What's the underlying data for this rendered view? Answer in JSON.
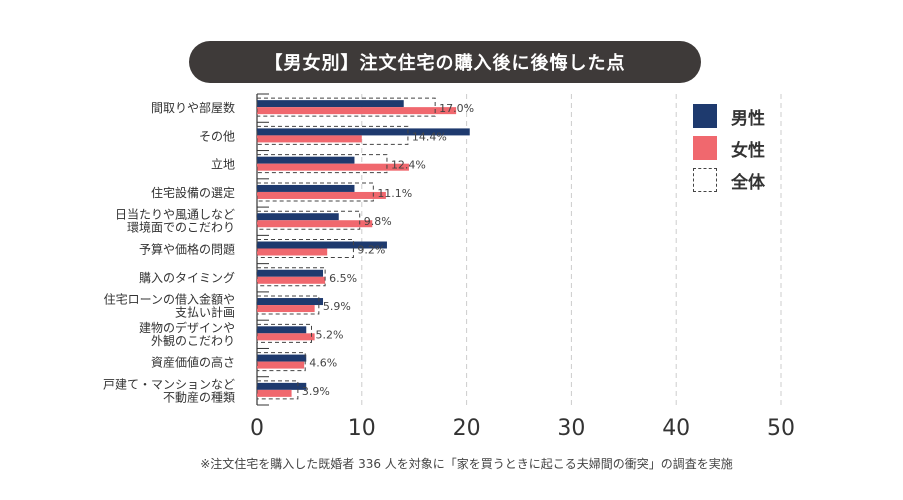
{
  "title": "【男女別】注文住宅の購入後に後悔した点",
  "footnote": "※注文住宅を購入した既婚者 336 人を対象に「家を買うときに起こる夫婦間の衝突」の調査を実施",
  "colors": {
    "male": "#1e3a6e",
    "female": "#f0686e",
    "total_outline": "#444444"
  },
  "legend": [
    {
      "key": "male",
      "label": "男性"
    },
    {
      "key": "female",
      "label": "女性"
    },
    {
      "key": "total",
      "label": "全体"
    }
  ],
  "chart_data": {
    "type": "bar",
    "orientation": "horizontal",
    "categories": [
      [
        "間取りや部屋数"
      ],
      [
        "その他"
      ],
      [
        "立地"
      ],
      [
        "住宅設備の選定"
      ],
      [
        "日当たりや風通しなど",
        "環境面でのこだわり"
      ],
      [
        "予算や価格の問題"
      ],
      [
        "購入のタイミング"
      ],
      [
        "住宅ローンの借入金額や",
        "支払い計画"
      ],
      [
        "建物のデザインや",
        "外観のこだわり"
      ],
      [
        "資産価値の高さ"
      ],
      [
        "戸建て・マンションなど",
        "不動産の種類"
      ]
    ],
    "series": [
      {
        "name": "男性",
        "values": [
          14.0,
          20.3,
          9.3,
          9.3,
          7.8,
          12.4,
          6.3,
          6.3,
          4.7,
          4.7,
          4.7
        ]
      },
      {
        "name": "女性",
        "values": [
          19.0,
          10.0,
          14.5,
          12.3,
          11.0,
          6.7,
          6.5,
          5.5,
          5.5,
          4.5,
          3.3
        ]
      },
      {
        "name": "全体",
        "values": [
          17.0,
          14.4,
          12.4,
          11.1,
          9.8,
          9.2,
          6.5,
          5.9,
          5.2,
          4.6,
          3.9
        ]
      }
    ],
    "total_labels": [
      "17.0%",
      "14.4%",
      "12.4%",
      "11.1%",
      "9.8%",
      "9.2%",
      "6.5%",
      "5.9%",
      "5.2%",
      "4.6%",
      "3.9%"
    ],
    "xlim": [
      0,
      50
    ],
    "xticks": [
      "0",
      "10",
      "20",
      "30",
      "40",
      "50"
    ],
    "grid": "vertical dashed",
    "legend_position": "top-right"
  }
}
